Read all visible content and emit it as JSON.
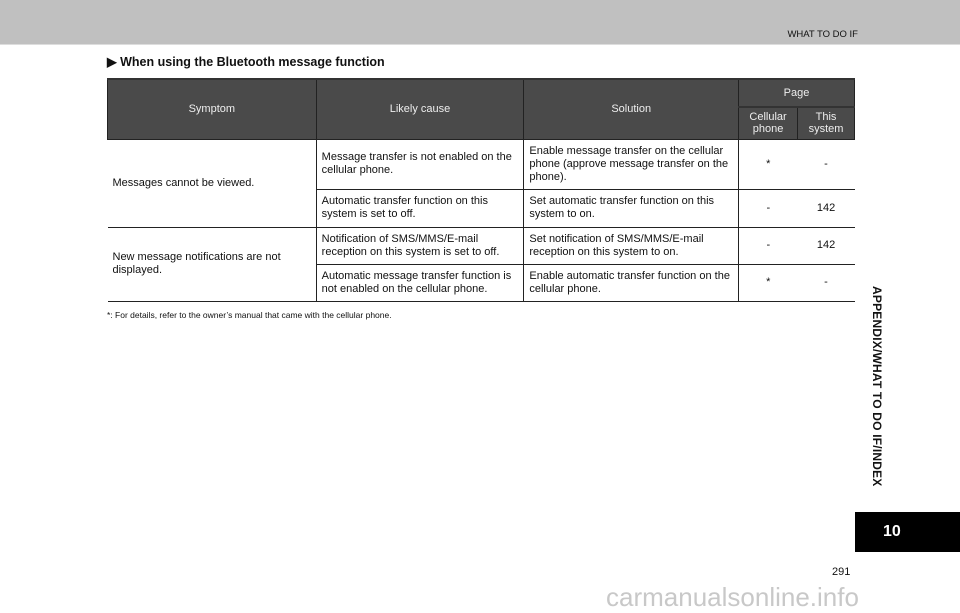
{
  "header": {
    "title": "WHAT TO DO IF"
  },
  "section": {
    "marker": "▶",
    "title": "When using the Bluetooth message function"
  },
  "table": {
    "headers": {
      "symptom": "Symptom",
      "cause": "Likely cause",
      "solution": "Solution",
      "page": "Page",
      "cellular": "Cellular phone",
      "system": "This system"
    },
    "groups": [
      {
        "symptom": "Messages cannot be viewed.",
        "rows": [
          {
            "cause": "Message transfer is not enabled on the cellular phone.",
            "solution": "Enable message transfer on the cellular phone (approve message transfer on the phone).",
            "cellular": "*",
            "system": "-"
          },
          {
            "cause": "Automatic transfer function on this system is set to off.",
            "solution": "Set automatic transfer function on this system to on.",
            "cellular": "-",
            "system": "142"
          }
        ]
      },
      {
        "symptom": "New message notifications are not displayed.",
        "rows": [
          {
            "cause": "Notification of SMS/MMS/E-mail reception on this system is set to off.",
            "solution": "Set notification of SMS/MMS/E-mail reception on this system to on.",
            "cellular": "-",
            "system": "142"
          },
          {
            "cause": "Automatic message transfer function is not enabled on the cellular phone.",
            "solution": "Enable automatic transfer function on the cellular phone.",
            "cellular": "*",
            "system": "-"
          }
        ]
      }
    ]
  },
  "footnote": "*:   For details, refer to the owner’s manual that came with the cellular phone.",
  "side": {
    "label": "APPENDIX/WHAT TO DO IF/INDEX",
    "chapter": "10"
  },
  "page_number": "291",
  "watermark": "carmanualsonline.info"
}
